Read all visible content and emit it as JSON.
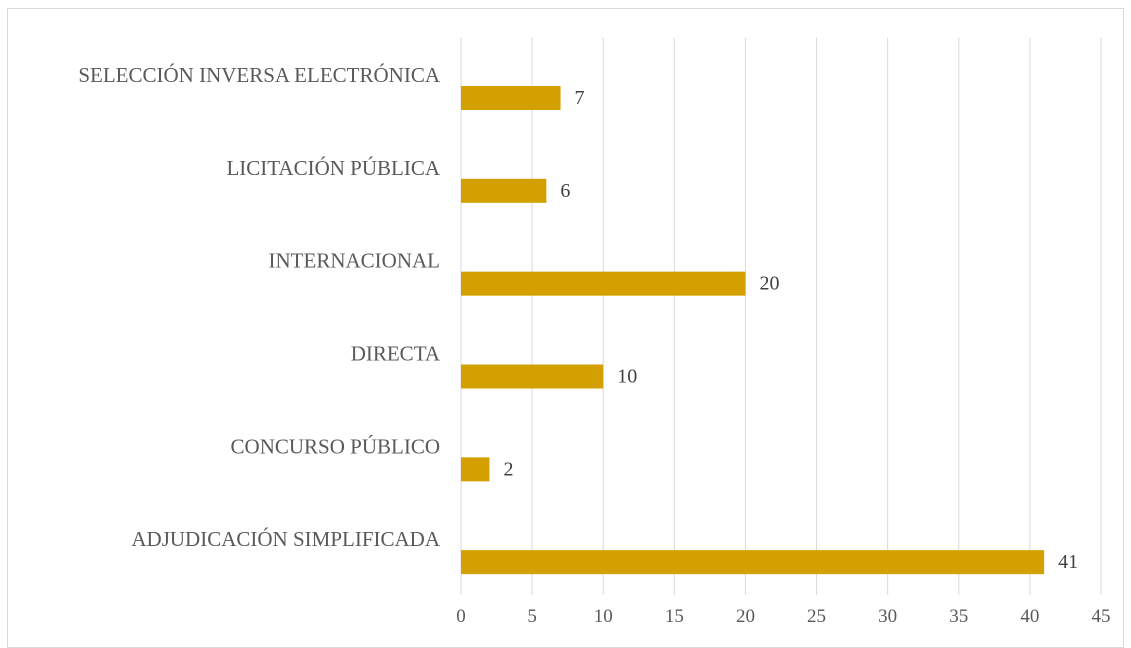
{
  "chart_data": {
    "type": "bar",
    "orientation": "horizontal",
    "categories": [
      "SELECCIÓN INVERSA ELECTRÓNICA",
      "LICITACIÓN PÚBLICA",
      "INTERNACIONAL",
      "DIRECTA",
      "CONCURSO PÚBLICO",
      "ADJUDICACIÓN SIMPLIFICADA"
    ],
    "values": [
      7,
      6,
      20,
      10,
      2,
      41
    ],
    "xlim": [
      0,
      45
    ],
    "xticks": [
      0,
      5,
      10,
      15,
      20,
      25,
      30,
      35,
      40,
      45
    ],
    "grid": "vertical",
    "data_labels": true,
    "legend": "none",
    "bar_color": "#D4A000",
    "gridline_color": "#d9d9d9"
  }
}
